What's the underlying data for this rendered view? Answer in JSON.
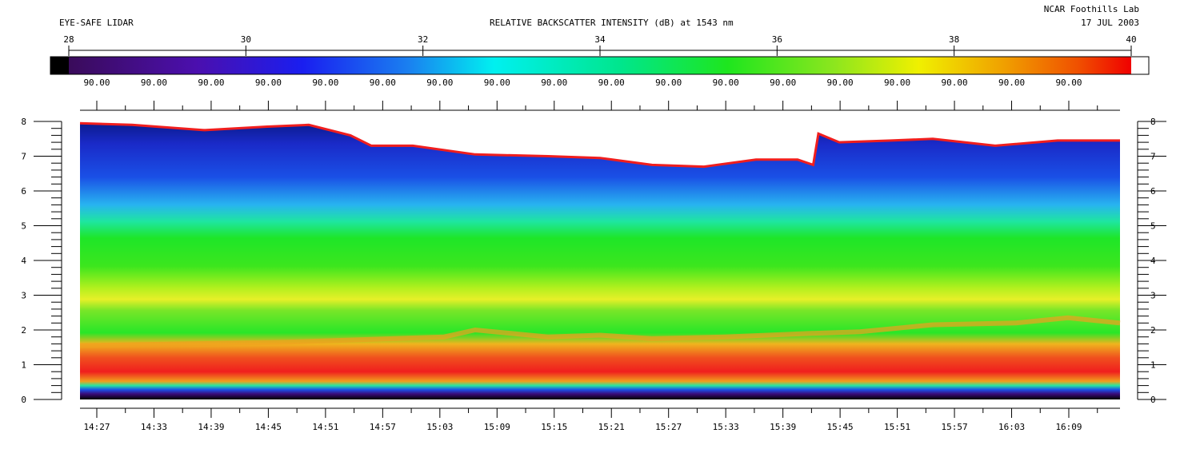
{
  "header": {
    "instrument": "EYE-SAFE LIDAR",
    "title": "RELATIVE BACKSCATTER INTENSITY (dB) at 1543 nm",
    "organization": "NCAR Foothills Lab",
    "date": "17 JUL 2003"
  },
  "chart_data": {
    "type": "heatmap",
    "title": "RELATIVE BACKSCATTER INTENSITY (dB) at 1543 nm",
    "colorbar": {
      "range": [
        28,
        40
      ],
      "ticks": [
        28,
        30,
        32,
        34,
        36,
        38,
        40
      ],
      "sublabels": [
        "90.00",
        "90.00",
        "90.00",
        "90.00",
        "90.00",
        "90.00",
        "90.00",
        "90.00",
        "90.00",
        "90.00",
        "90.00",
        "90.00",
        "90.00",
        "90.00",
        "90.00",
        "90.00",
        "90.00",
        "90.00"
      ],
      "low_color": "#000000",
      "high_color": "#ffffff"
    },
    "x_ticks": [
      "14:27",
      "14:33",
      "14:39",
      "14:45",
      "14:51",
      "14:57",
      "15:03",
      "15:09",
      "15:15",
      "15:21",
      "15:27",
      "15:33",
      "15:39",
      "15:45",
      "15:51",
      "15:57",
      "16:03",
      "16:09"
    ],
    "y_ticks": [
      0,
      1,
      2,
      3,
      4,
      5,
      6,
      7,
      8
    ],
    "ylim": [
      0,
      8
    ],
    "description_layers": {
      "cloud_top_height": [
        [
          0,
          7.95
        ],
        [
          0.05,
          7.9
        ],
        [
          0.12,
          7.75
        ],
        [
          0.18,
          7.85
        ],
        [
          0.22,
          7.9
        ],
        [
          0.26,
          7.6
        ],
        [
          0.28,
          7.3
        ],
        [
          0.32,
          7.3
        ],
        [
          0.38,
          7.05
        ],
        [
          0.45,
          7.0
        ],
        [
          0.5,
          6.95
        ],
        [
          0.55,
          6.75
        ],
        [
          0.6,
          6.7
        ],
        [
          0.65,
          6.9
        ],
        [
          0.69,
          6.9
        ],
        [
          0.705,
          6.75
        ],
        [
          0.71,
          7.65
        ],
        [
          0.73,
          7.4
        ],
        [
          0.78,
          7.45
        ],
        [
          0.82,
          7.5
        ],
        [
          0.88,
          7.3
        ],
        [
          0.94,
          7.45
        ],
        [
          1.0,
          7.45
        ]
      ],
      "aerosol_top_height": [
        [
          0,
          1.55
        ],
        [
          0.2,
          1.65
        ],
        [
          0.35,
          1.8
        ],
        [
          0.38,
          2.0
        ],
        [
          0.45,
          1.8
        ],
        [
          0.5,
          1.85
        ],
        [
          0.55,
          1.75
        ],
        [
          0.62,
          1.8
        ],
        [
          0.7,
          1.9
        ],
        [
          0.75,
          1.95
        ],
        [
          0.82,
          2.15
        ],
        [
          0.9,
          2.2
        ],
        [
          0.95,
          2.35
        ],
        [
          1.0,
          2.2
        ]
      ]
    }
  }
}
